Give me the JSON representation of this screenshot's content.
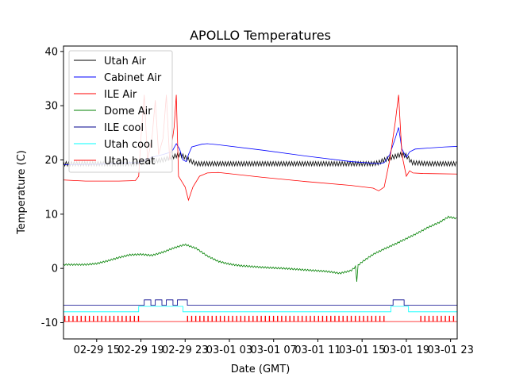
{
  "chart_data": {
    "type": "line",
    "title": "APOLLO Temperatures",
    "xlabel": "Date (GMT)",
    "ylabel": "Temperature (C)",
    "x_unit": "hours since 02-29 12:00 GMT",
    "xlim": [
      0,
      35.6
    ],
    "ylim": [
      -13,
      41
    ],
    "yticks": [
      -10,
      0,
      10,
      20,
      30,
      40
    ],
    "xticks": [
      {
        "x": 3,
        "label": "02-29 15"
      },
      {
        "x": 7,
        "label": "02-29 19"
      },
      {
        "x": 11,
        "label": "02-29 23"
      },
      {
        "x": 15,
        "label": "03-01 03"
      },
      {
        "x": 19,
        "label": "03-01 07"
      },
      {
        "x": 23,
        "label": "03-01 11"
      },
      {
        "x": 27,
        "label": "03-01 15"
      },
      {
        "x": 31,
        "label": "03-01 19"
      },
      {
        "x": 35,
        "label": "03-01 23"
      }
    ],
    "legend_position": "top-left",
    "series": [
      {
        "name": "Utah Air",
        "color": "#000000",
        "x": [
          0,
          2,
          5,
          6.5,
          9,
          10.5,
          11,
          11.5,
          12,
          14,
          18,
          22,
          25,
          28,
          28.5,
          29,
          30.5,
          31,
          31.5,
          33,
          35.6
        ],
        "y": [
          19.3,
          19.3,
          19.3,
          19.3,
          20,
          21,
          20.5,
          19.8,
          19.3,
          19.3,
          19.3,
          19.3,
          19.3,
          19.3,
          19.5,
          20,
          21,
          20.8,
          19.5,
          19.3,
          19.3
        ],
        "oscillation": 0.4
      },
      {
        "name": "Cabinet Air",
        "color": "#0000ff",
        "x": [
          0,
          3,
          6,
          6.8,
          8,
          9,
          9.8,
          10.2,
          10.5,
          10.8,
          11.1,
          11.3,
          11.6,
          12.5,
          13,
          14,
          18,
          22,
          26,
          28.6,
          29,
          29.5,
          30,
          30.3,
          30.6,
          31,
          31.3,
          31.8,
          33,
          34.5,
          35.6
        ],
        "y": [
          19.1,
          19.2,
          19.5,
          19.5,
          20.5,
          21,
          21.5,
          23,
          22,
          20,
          19.7,
          21,
          22.4,
          22.9,
          23,
          22.8,
          21.8,
          20.7,
          19.7,
          19.3,
          19.5,
          21,
          24,
          26,
          22,
          20.5,
          21.5,
          22,
          22.2,
          22.4,
          22.5
        ],
        "oscillation": 0
      },
      {
        "name": "ILE Air",
        "color": "#ff0000",
        "x": [
          0,
          2,
          5,
          6.5,
          6.8,
          7,
          7.3,
          7.6,
          8,
          8.3,
          8.6,
          9,
          9.3,
          9.6,
          10,
          10.2,
          10.4,
          10.7,
          11,
          11.3,
          11.7,
          12.3,
          13,
          14,
          18,
          22,
          26,
          28,
          28.5,
          29,
          29.5,
          30,
          30.3,
          30.6,
          31,
          31.3,
          31.6,
          32.5,
          35.6
        ],
        "y": [
          16.3,
          16.1,
          16.1,
          16.2,
          17,
          24,
          32,
          20,
          24,
          31,
          21,
          24,
          32,
          20,
          26,
          32,
          17,
          16,
          15,
          12.6,
          15,
          17,
          17.6,
          17.7,
          16.8,
          16,
          15.3,
          14.8,
          14.3,
          15,
          20,
          27,
          32,
          21,
          17,
          18,
          17.6,
          17.5,
          17.4
        ],
        "oscillation": 0
      },
      {
        "name": "Dome Air",
        "color": "#008000",
        "x": [
          0,
          2,
          3,
          4,
          5,
          6,
          7,
          8,
          9,
          10,
          11,
          12,
          13,
          14,
          15,
          16,
          18,
          20,
          22,
          23.5,
          24,
          25,
          26,
          26.4,
          26.5,
          26.6,
          27,
          28,
          29,
          30,
          31,
          32,
          33,
          34,
          34.8,
          35.6
        ],
        "y": [
          0.7,
          0.7,
          0.9,
          1.4,
          2,
          2.5,
          2.6,
          2.4,
          3,
          3.8,
          4.4,
          3.7,
          2.3,
          1.3,
          0.8,
          0.5,
          0.2,
          0,
          -0.3,
          -0.5,
          -0.6,
          -0.9,
          -0.4,
          0.3,
          -3,
          0.5,
          1.2,
          2.6,
          3.6,
          4.5,
          5.5,
          6.5,
          7.6,
          8.5,
          9.5,
          9.2
        ],
        "oscillation": 0.15
      },
      {
        "name": "ILE cool",
        "color": "#00008b",
        "x": [
          0,
          7.3,
          7.3,
          7.9,
          7.9,
          8.3,
          8.3,
          8.9,
          8.9,
          9.3,
          9.3,
          9.9,
          9.9,
          10.3,
          10.3,
          11.2,
          11.2,
          29.8,
          29.8,
          30.8,
          30.8,
          35.6
        ],
        "y": [
          -6.8,
          -6.8,
          -5.8,
          -5.8,
          -6.8,
          -6.8,
          -5.8,
          -5.8,
          -6.8,
          -6.8,
          -5.8,
          -5.8,
          -6.8,
          -6.8,
          -5.8,
          -5.8,
          -6.8,
          -6.8,
          -5.8,
          -5.8,
          -6.8,
          -6.8
        ],
        "oscillation": 0
      },
      {
        "name": "Utah cool",
        "color": "#00ffff",
        "x": [
          0,
          6.8,
          6.8,
          10.8,
          10.8,
          29.6,
          29.6,
          31.2,
          31.2,
          35.6
        ],
        "y": [
          -8,
          -8,
          -7,
          -7,
          -8,
          -8,
          -7,
          -7,
          -8,
          -8
        ],
        "oscillation": 0
      },
      {
        "name": "Utah heat",
        "color": "#ff0000",
        "x": [
          0,
          35.6
        ],
        "y": [
          -9.8,
          -9.8
        ],
        "oscillation": 0,
        "pulse_height": 1,
        "pulse_spacing": 0.37,
        "pulse_off_ranges": [
          [
            7,
            11
          ],
          [
            29.2,
            32
          ]
        ]
      }
    ],
    "legend_entries": [
      "Utah Air",
      "Cabinet Air",
      "ILE Air",
      "Dome Air",
      "ILE cool",
      "Utah cool",
      "Utah heat"
    ]
  }
}
